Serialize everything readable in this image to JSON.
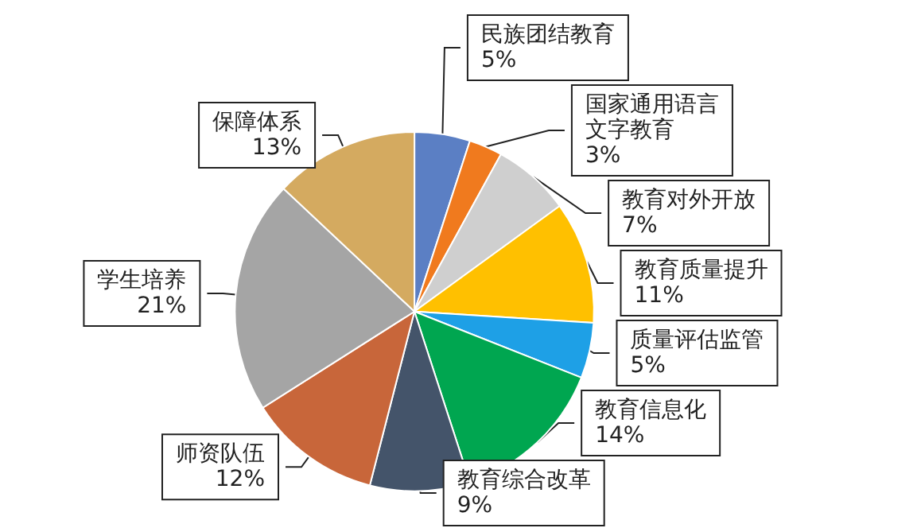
{
  "chart_data": {
    "type": "pie",
    "categories": [
      "民族团结教育",
      "国家通用语言文字教育",
      "教育对外开放",
      "教育质量提升",
      "质量评估监管",
      "教育信息化",
      "教育综合改革",
      "师资队伍",
      "学生培养",
      "保障体系"
    ],
    "values": [
      5,
      3,
      7,
      11,
      5,
      14,
      9,
      12,
      21,
      13
    ],
    "value_labels": [
      "5%",
      "3%",
      "7%",
      "11%",
      "5%",
      "14%",
      "9%",
      "12%",
      "21%",
      "13%"
    ],
    "colors": [
      "#5b7fc4",
      "#f07a1e",
      "#cfcfcf",
      "#ffc000",
      "#1ea0e6",
      "#00a650",
      "#44546a",
      "#c8663a",
      "#a5a5a5",
      "#d4aa60"
    ]
  }
}
